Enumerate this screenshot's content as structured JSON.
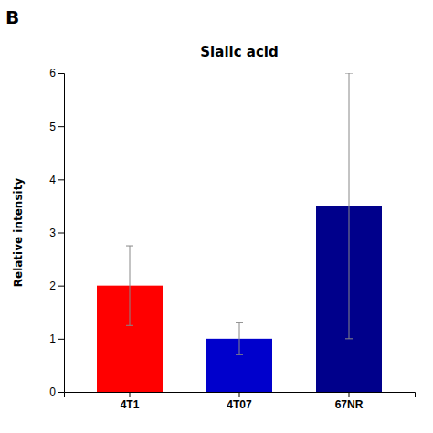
{
  "chart_data": {
    "type": "bar",
    "title": "Sialic acid",
    "ylabel": "Relative intensity",
    "categories": [
      "4T1",
      "4T07",
      "67NR"
    ],
    "values": [
      2.0,
      1.0,
      3.5
    ],
    "errors": [
      0.75,
      0.3,
      2.5
    ],
    "colors": [
      "#ff0000",
      "#0000cc",
      "#00008b"
    ],
    "ylim": [
      0,
      6
    ],
    "yticks": [
      0,
      1,
      2,
      3,
      4,
      5,
      6
    ],
    "grid": false,
    "annotations": [
      "B"
    ]
  }
}
